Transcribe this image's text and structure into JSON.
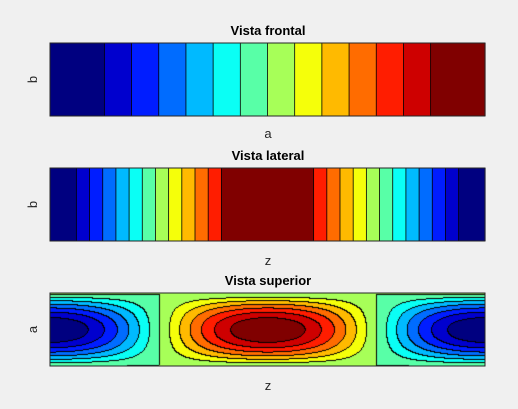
{
  "chart_data": [
    {
      "type": "contourf",
      "title": "Vista frontal",
      "xlabel": "a",
      "ylabel": "b",
      "ticks": "none",
      "grid": false,
      "legend": "none",
      "colormap": "jet",
      "levels": 14,
      "variation": "x",
      "pattern": "monotonic increasing from left to right",
      "values": [
        0,
        0,
        1,
        2,
        3,
        4,
        5,
        6,
        7,
        8,
        9,
        10,
        11,
        12,
        13,
        13
      ]
    },
    {
      "type": "contourf",
      "title": "Vista lateral",
      "xlabel": "z",
      "ylabel": "b",
      "ticks": "none",
      "grid": false,
      "legend": "none",
      "colormap": "jet",
      "levels": 14,
      "variation": "x",
      "pattern": "symmetric peak at center",
      "values": [
        0,
        0,
        1,
        2,
        3,
        4,
        5,
        6,
        7,
        8,
        9,
        10,
        11,
        13,
        13,
        13,
        13,
        13,
        13,
        13,
        11,
        10,
        9,
        8,
        7,
        6,
        5,
        4,
        3,
        2,
        1,
        0,
        0
      ]
    },
    {
      "type": "contourf",
      "title": "Vista superior",
      "xlabel": "z",
      "ylabel": "a",
      "ticks": "none",
      "grid": false,
      "legend": "none",
      "colormap": "jet",
      "levels": 14,
      "variation": "x and y",
      "pattern": "maximum at center, minima at left and right edges, zero band between",
      "zrange": [
        -1,
        1
      ]
    }
  ],
  "colors": {
    "background": "#f0f0f0",
    "axes_border": "#262626",
    "contour_line": "#000000"
  }
}
